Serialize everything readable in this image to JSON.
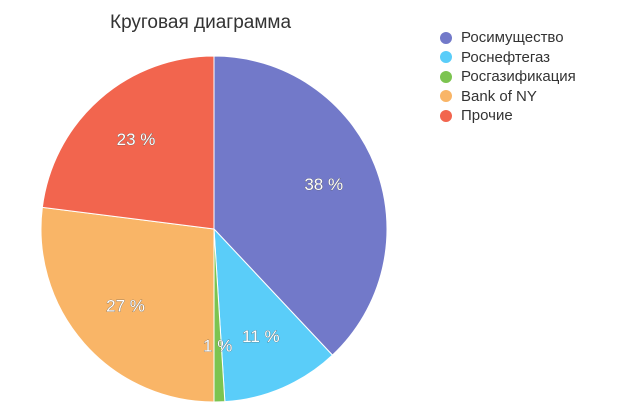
{
  "chart_data": {
    "type": "pie",
    "title": "Круговая диаграмма",
    "slices": [
      {
        "name": "Росимущество",
        "value": 38,
        "label": "38 %",
        "color": "#7279c9"
      },
      {
        "name": "Роснефтегаз",
        "value": 11,
        "label": "11 %",
        "color": "#5acdf9"
      },
      {
        "name": "Росгазификация",
        "value": 1,
        "label": "1 %",
        "color": "#7cc450"
      },
      {
        "name": "Bank of NY",
        "value": 27,
        "label": "27 %",
        "color": "#f9b567"
      },
      {
        "name": "Прочие",
        "value": 23,
        "label": "23 %",
        "color": "#f2654e"
      }
    ],
    "legend_position": "top-right",
    "start_angle": "12 o'clock",
    "direction": "clockwise"
  }
}
